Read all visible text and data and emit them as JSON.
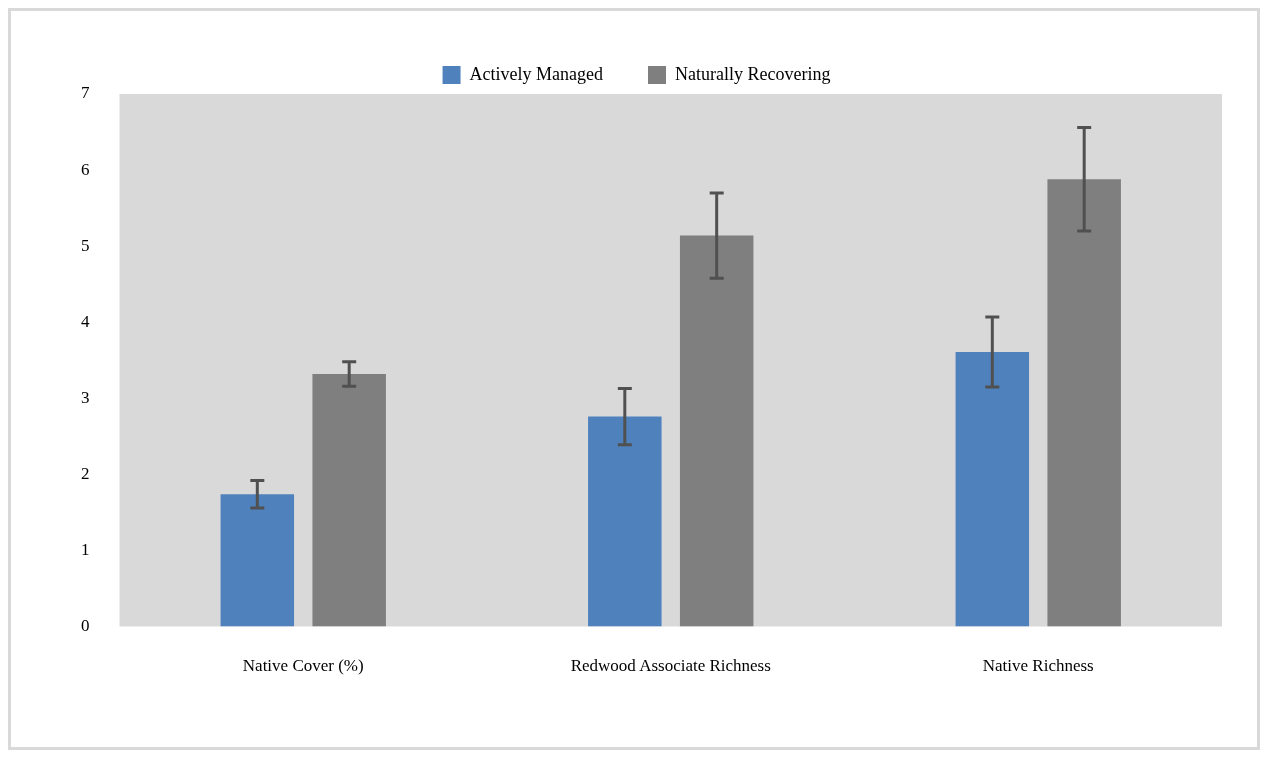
{
  "chart_data": {
    "type": "bar",
    "categories": [
      "Native Cover (%)",
      "Redwood Associate Richness",
      "Native Richness"
    ],
    "series": [
      {
        "name": "Actively Managed",
        "color": "#4f81bd",
        "values": [
          1.74,
          2.76,
          3.61
        ],
        "errors": [
          0.18,
          0.37,
          0.46
        ]
      },
      {
        "name": "Naturally Recovering",
        "color": "#7f7f7f",
        "values": [
          3.32,
          5.14,
          5.88
        ],
        "errors": [
          0.16,
          0.56,
          0.68
        ]
      }
    ],
    "ylim": [
      0,
      7
    ],
    "yticks": [
      0,
      1,
      2,
      3,
      4,
      5,
      6,
      7
    ],
    "grid": false,
    "legend": "top"
  }
}
